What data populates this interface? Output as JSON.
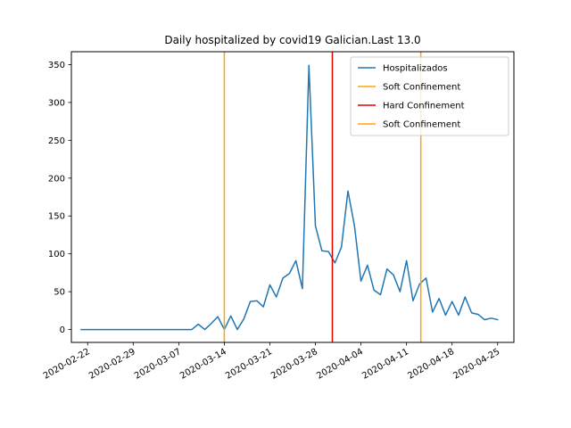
{
  "chart_data": {
    "type": "line",
    "title": "Daily hospitalized by covid19 Galician.Last  13.0",
    "xlabel": "",
    "ylabel": "",
    "x_start": "2020-02-21",
    "xlim_days": [
      -1.5,
      66.5
    ],
    "ylim": [
      -17,
      367
    ],
    "yticks": [
      0,
      50,
      100,
      150,
      200,
      250,
      300,
      350
    ],
    "xticks": [
      {
        "day": 1,
        "label": "2020-02-22"
      },
      {
        "day": 8,
        "label": "2020-02-29"
      },
      {
        "day": 15,
        "label": "2020-03-07"
      },
      {
        "day": 22,
        "label": "2020-03-14"
      },
      {
        "day": 29,
        "label": "2020-03-21"
      },
      {
        "day": 36,
        "label": "2020-03-28"
      },
      {
        "day": 43,
        "label": "2020-04-04"
      },
      {
        "day": 50,
        "label": "2020-04-11"
      },
      {
        "day": 57,
        "label": "2020-04-18"
      },
      {
        "day": 64,
        "label": "2020-04-25"
      }
    ],
    "series": [
      {
        "name": "Hospitalizados",
        "color": "#1f77b4",
        "values": [
          0,
          0,
          0,
          0,
          0,
          0,
          0,
          0,
          0,
          0,
          0,
          0,
          0,
          0,
          0,
          0,
          0,
          0,
          7,
          0,
          8,
          17,
          0,
          18,
          0,
          14,
          37,
          38,
          30,
          59,
          43,
          68,
          74,
          91,
          54,
          349,
          137,
          104,
          103,
          88,
          109,
          183,
          137,
          64,
          85,
          52,
          46,
          80,
          72,
          50,
          91,
          38,
          60,
          68,
          23,
          41,
          19,
          37,
          19,
          43,
          22,
          20,
          13,
          15,
          13
        ]
      }
    ],
    "vlines": [
      {
        "name": "Soft Confinement",
        "day": 22.0,
        "color": "#ffa500"
      },
      {
        "name": "Hard Confinement",
        "day": 38.6,
        "color": "#e50000"
      },
      {
        "name": "Soft Confinement",
        "day": 52.2,
        "color": "#ffa500"
      }
    ],
    "legend": {
      "position": "top-right",
      "entries": [
        {
          "label": "Hospitalizados",
          "color": "#1f77b4"
        },
        {
          "label": "Soft Confinement",
          "color": "#ffa500"
        },
        {
          "label": "Hard Confinement",
          "color": "#e50000"
        },
        {
          "label": "Soft Confinement",
          "color": "#ffa500"
        }
      ]
    }
  }
}
